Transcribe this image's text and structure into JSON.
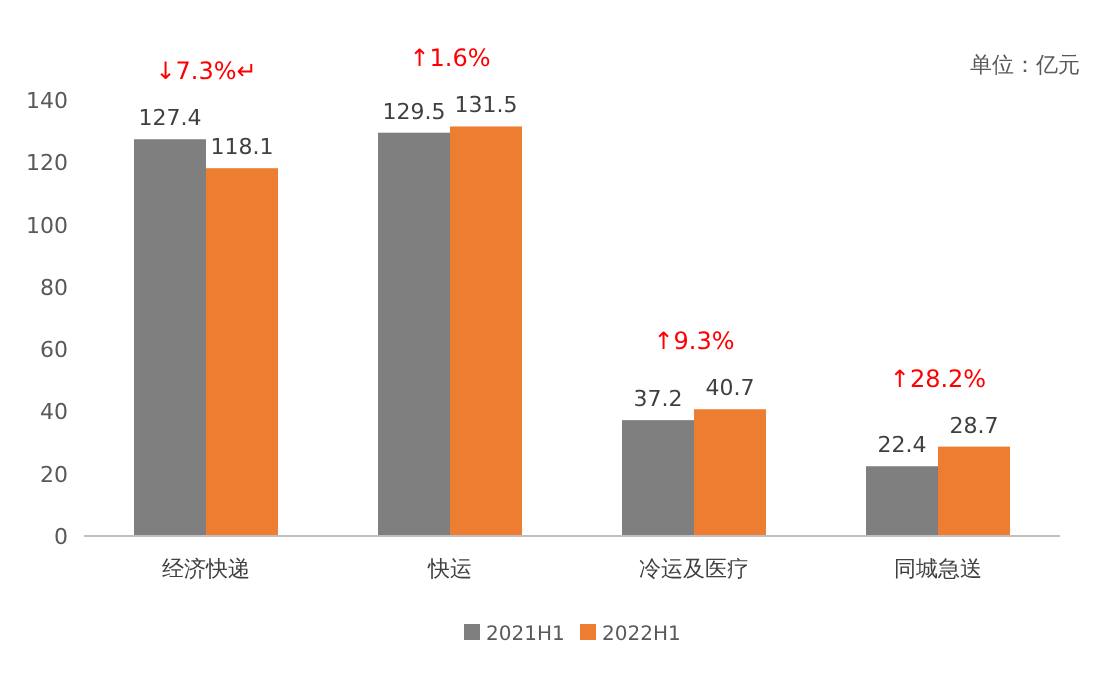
{
  "chart_data": {
    "type": "bar",
    "categories": [
      "经济快递",
      "快运",
      "冷运及医疗",
      "同城急送"
    ],
    "series": [
      {
        "name": "2021H1",
        "color": "#7f7f7f",
        "values": [
          127.4,
          129.5,
          37.2,
          22.4
        ]
      },
      {
        "name": "2022H1",
        "color": "#ed7d31",
        "values": [
          118.1,
          131.5,
          40.7,
          28.7
        ]
      }
    ],
    "ylim": [
      0,
      140
    ],
    "yticks": [
      0,
      20,
      40,
      60,
      80,
      100,
      120,
      140
    ],
    "grid": false,
    "legend": "bottom",
    "data_labels": true,
    "annotations": [
      {
        "text": "↓7.3%↵",
        "x": "经济快递",
        "y": 127.4
      },
      {
        "text": "↑1.6%",
        "x": "快运",
        "y": 131.5
      },
      {
        "text": "↑9.3%",
        "x": "冷运及医疗",
        "y": 40.7
      },
      {
        "text": "↑28.2%",
        "x": "同城急送",
        "y": 28.7
      },
      "单位：亿元"
    ]
  }
}
